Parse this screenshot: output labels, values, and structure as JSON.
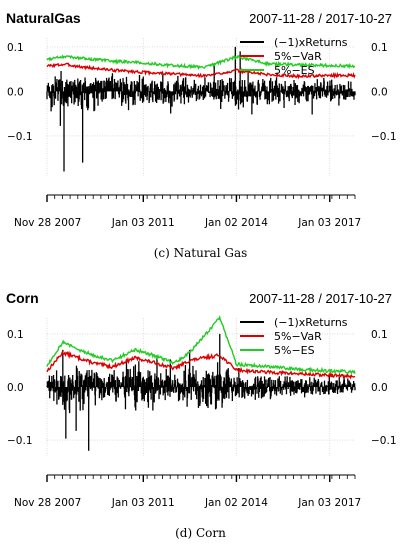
{
  "captions": [
    "(c)  Natural Gas",
    "(d)  Corn"
  ],
  "chart_data": [
    {
      "type": "line",
      "title": "NaturalGas",
      "date_range": "2007-11-28 / 2017-10-27",
      "x_ticks": [
        "Nov 28 2007",
        "Jan 03 2011",
        "Jan 02 2014",
        "Jan 03 2017"
      ],
      "x_tick_dates": [
        "2007-11-28",
        "2011-01-03",
        "2014-01-02",
        "2017-01-03"
      ],
      "x_range": [
        "2007-11-28",
        "2017-10-27"
      ],
      "y_ticks": [
        -0.1,
        0.0,
        0.1
      ],
      "ylim": [
        -0.19,
        0.12
      ],
      "grid": true,
      "legend_position": "top-right",
      "legend": [
        "(−1)xReturns",
        "5%−VaR",
        "5%−ES"
      ],
      "series": [
        {
          "name": "(−1)xReturns",
          "color": "#000000",
          "summary": "daily negated returns, mostly within ±0.06, deepest spikes near -0.18 in 2008",
          "extremes": [
            [
              "2008-06-15",
              -0.18
            ],
            [
              "2009-01-20",
              -0.16
            ],
            [
              "2013-12-20",
              0.1
            ],
            [
              "2014-02-15",
              0.09
            ]
          ]
        },
        {
          "name": "5%−VaR",
          "color": "#dd0000",
          "points": [
            [
              "2007-11-28",
              0.057
            ],
            [
              "2008-07-01",
              0.061
            ],
            [
              "2009-01-01",
              0.055
            ],
            [
              "2010-01-01",
              0.048
            ],
            [
              "2011-01-03",
              0.043
            ],
            [
              "2012-01-01",
              0.039
            ],
            [
              "2013-01-01",
              0.035
            ],
            [
              "2014-01-02",
              0.047
            ],
            [
              "2015-01-01",
              0.038
            ],
            [
              "2016-01-01",
              0.034
            ],
            [
              "2017-01-03",
              0.036
            ],
            [
              "2017-10-27",
              0.036
            ]
          ]
        },
        {
          "name": "5%−ES",
          "color": "#22cc22",
          "points": [
            [
              "2007-11-28",
              0.072
            ],
            [
              "2008-07-01",
              0.079
            ],
            [
              "2009-01-01",
              0.075
            ],
            [
              "2010-01-01",
              0.068
            ],
            [
              "2011-01-03",
              0.064
            ],
            [
              "2012-01-01",
              0.058
            ],
            [
              "2013-01-01",
              0.054
            ],
            [
              "2014-01-02",
              0.078
            ],
            [
              "2015-01-01",
              0.062
            ],
            [
              "2016-01-01",
              0.06
            ],
            [
              "2017-01-03",
              0.058
            ],
            [
              "2017-10-27",
              0.057
            ]
          ]
        }
      ]
    },
    {
      "type": "line",
      "title": "Corn",
      "date_range": "2007-11-28 / 2017-10-27",
      "x_ticks": [
        "Nov 28 2007",
        "Jan 03 2011",
        "Jan 02 2014",
        "Jan 03 2017"
      ],
      "x_tick_dates": [
        "2007-11-28",
        "2011-01-03",
        "2014-01-02",
        "2017-01-03"
      ],
      "x_range": [
        "2007-11-28",
        "2017-10-27"
      ],
      "y_ticks": [
        -0.1,
        0.0,
        0.1
      ],
      "ylim": [
        -0.13,
        0.13
      ],
      "grid": true,
      "legend_position": "top-right",
      "legend": [
        "(−1)xReturns",
        "5%−VaR",
        "5%−ES"
      ],
      "series": [
        {
          "name": "(−1)xReturns",
          "color": "#000000",
          "summary": "daily negated returns, mostly within ±0.05, spikes to about -0.12 in 2009 and 0.1 in 2013",
          "extremes": [
            [
              "2009-04-01",
              -0.12
            ],
            [
              "2008-06-01",
              0.07
            ],
            [
              "2013-06-20",
              0.1
            ],
            [
              "2012-07-01",
              0.07
            ]
          ]
        },
        {
          "name": "5%−VaR",
          "color": "#dd0000",
          "points": [
            [
              "2007-11-28",
              0.03
            ],
            [
              "2008-06-01",
              0.065
            ],
            [
              "2008-12-01",
              0.055
            ],
            [
              "2009-06-01",
              0.045
            ],
            [
              "2010-01-01",
              0.038
            ],
            [
              "2010-10-01",
              0.055
            ],
            [
              "2011-06-01",
              0.045
            ],
            [
              "2012-01-01",
              0.035
            ],
            [
              "2012-07-01",
              0.05
            ],
            [
              "2013-06-20",
              0.06
            ],
            [
              "2014-01-02",
              0.032
            ],
            [
              "2015-01-01",
              0.028
            ],
            [
              "2016-01-01",
              0.025
            ],
            [
              "2017-01-03",
              0.022
            ],
            [
              "2017-10-27",
              0.02
            ]
          ]
        },
        {
          "name": "5%−ES",
          "color": "#22cc22",
          "points": [
            [
              "2007-11-28",
              0.04
            ],
            [
              "2008-06-01",
              0.085
            ],
            [
              "2008-12-01",
              0.07
            ],
            [
              "2009-06-01",
              0.06
            ],
            [
              "2010-01-01",
              0.05
            ],
            [
              "2010-10-01",
              0.07
            ],
            [
              "2011-06-01",
              0.058
            ],
            [
              "2012-01-01",
              0.045
            ],
            [
              "2012-07-01",
              0.065
            ],
            [
              "2013-06-20",
              0.13
            ],
            [
              "2014-01-02",
              0.043
            ],
            [
              "2015-01-01",
              0.038
            ],
            [
              "2016-01-01",
              0.034
            ],
            [
              "2017-01-03",
              0.03
            ],
            [
              "2017-10-27",
              0.028
            ]
          ]
        }
      ]
    }
  ]
}
